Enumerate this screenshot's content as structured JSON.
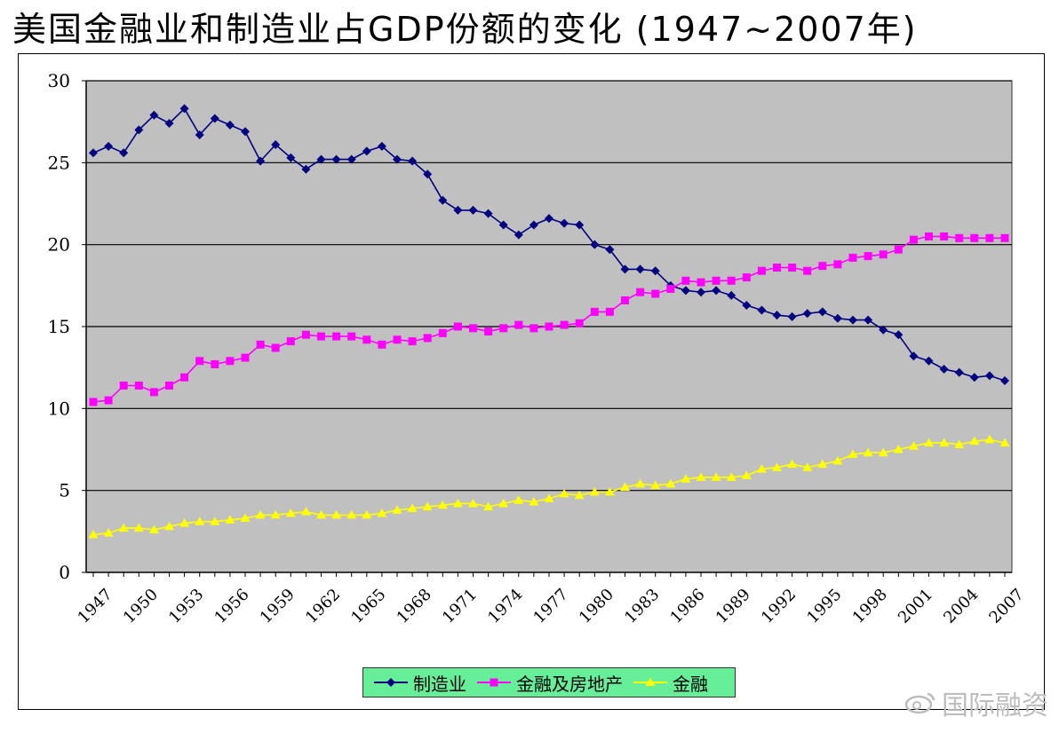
{
  "page": {
    "title": "美国金融业和制造业占GDP份额的变化 (1947~2007年)",
    "watermark": "国际融资",
    "watermark_icon": "weibo-icon"
  },
  "chart_data": {
    "type": "line",
    "title": "美国金融业和制造业占GDP份额的变化 (1947~2007年)",
    "xlabel": "",
    "ylabel": "",
    "ylim": [
      0,
      30
    ],
    "yticks": [
      0,
      5,
      10,
      15,
      20,
      25,
      30
    ],
    "x": [
      1947,
      1948,
      1949,
      1950,
      1951,
      1952,
      1953,
      1954,
      1955,
      1956,
      1957,
      1958,
      1959,
      1960,
      1961,
      1962,
      1963,
      1964,
      1965,
      1966,
      1967,
      1968,
      1969,
      1970,
      1971,
      1972,
      1973,
      1974,
      1975,
      1976,
      1977,
      1978,
      1979,
      1980,
      1981,
      1982,
      1983,
      1984,
      1985,
      1986,
      1987,
      1988,
      1989,
      1990,
      1991,
      1992,
      1993,
      1994,
      1995,
      1996,
      1997,
      1998,
      1999,
      2000,
      2001,
      2002,
      2003,
      2004,
      2005,
      2006,
      2007
    ],
    "xticks": [
      "1947",
      "1950",
      "1953",
      "1956",
      "1959",
      "1962",
      "1965",
      "1968",
      "1971",
      "1974",
      "1977",
      "1980",
      "1983",
      "1986",
      "1989",
      "1992",
      "1995",
      "1998",
      "2001",
      "2004",
      "2007"
    ],
    "grid": true,
    "plot_background": "#c0c0c0",
    "legend": "bottom",
    "series": [
      {
        "name": "制造业",
        "color": "#000080",
        "marker": "diamond",
        "values": [
          25.6,
          26.0,
          25.6,
          27.0,
          27.9,
          27.4,
          28.3,
          26.7,
          27.7,
          27.3,
          26.9,
          25.1,
          26.1,
          25.3,
          24.6,
          25.2,
          25.2,
          25.2,
          25.7,
          26.0,
          25.2,
          25.1,
          24.3,
          22.7,
          22.1,
          22.1,
          21.9,
          21.2,
          20.6,
          21.2,
          21.6,
          21.3,
          21.2,
          20.0,
          19.7,
          18.5,
          18.5,
          18.4,
          17.5,
          17.2,
          17.1,
          17.2,
          16.9,
          16.3,
          16.0,
          15.7,
          15.6,
          15.8,
          15.9,
          15.5,
          15.4,
          15.4,
          14.8,
          14.5,
          13.2,
          12.9,
          12.4,
          12.2,
          11.9,
          12.0,
          11.7
        ]
      },
      {
        "name": "金融及房地产",
        "color": "#ff00ff",
        "marker": "square",
        "values": [
          10.4,
          10.5,
          11.4,
          11.4,
          11.0,
          11.4,
          11.9,
          12.9,
          12.7,
          12.9,
          13.1,
          13.9,
          13.7,
          14.1,
          14.5,
          14.4,
          14.4,
          14.4,
          14.2,
          13.9,
          14.2,
          14.1,
          14.3,
          14.6,
          15.0,
          14.9,
          14.7,
          14.9,
          15.1,
          14.9,
          15.0,
          15.1,
          15.2,
          15.9,
          15.9,
          16.6,
          17.1,
          17.0,
          17.3,
          17.8,
          17.7,
          17.8,
          17.8,
          18.0,
          18.4,
          18.6,
          18.6,
          18.4,
          18.7,
          18.8,
          19.2,
          19.3,
          19.4,
          19.7,
          20.3,
          20.5,
          20.5,
          20.4,
          20.4,
          20.4,
          20.4
        ]
      },
      {
        "name": "金融",
        "color": "#ffff00",
        "marker": "triangle",
        "values": [
          2.3,
          2.4,
          2.7,
          2.7,
          2.6,
          2.8,
          3.0,
          3.1,
          3.1,
          3.2,
          3.3,
          3.5,
          3.5,
          3.6,
          3.7,
          3.5,
          3.5,
          3.5,
          3.5,
          3.6,
          3.8,
          3.9,
          4.0,
          4.1,
          4.2,
          4.2,
          4.0,
          4.2,
          4.4,
          4.3,
          4.5,
          4.8,
          4.7,
          4.9,
          4.9,
          5.2,
          5.4,
          5.3,
          5.4,
          5.7,
          5.8,
          5.8,
          5.8,
          5.9,
          6.3,
          6.4,
          6.6,
          6.4,
          6.6,
          6.8,
          7.2,
          7.3,
          7.3,
          7.5,
          7.7,
          7.9,
          7.9,
          7.8,
          8.0,
          8.1,
          7.9
        ]
      }
    ]
  }
}
